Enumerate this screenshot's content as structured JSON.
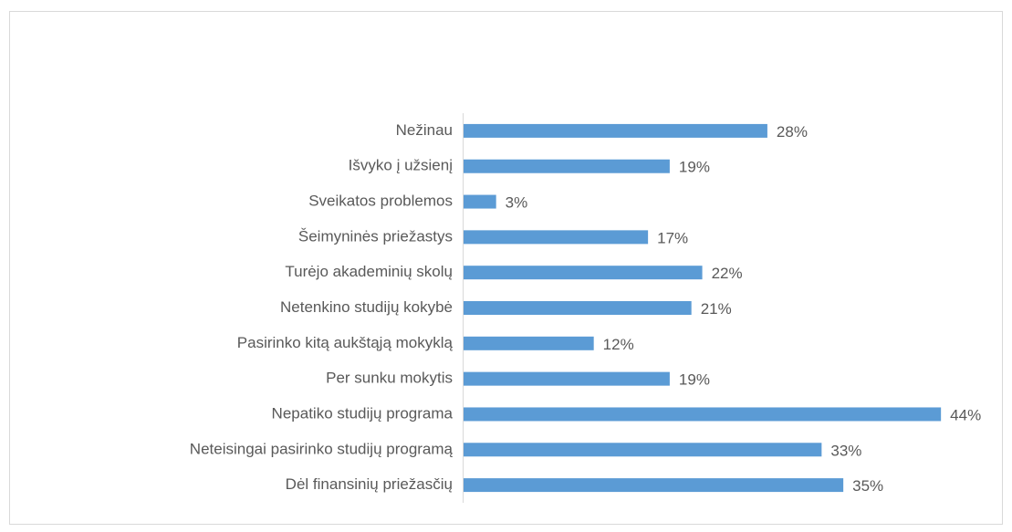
{
  "chart_data": {
    "type": "bar",
    "orientation": "horizontal",
    "color": "#5b9bd5",
    "categories": [
      "Nežinau",
      "Išvyko į užsienį",
      "Sveikatos problemos",
      "Šeimyninės priežastys",
      "Turėjo akademinių skolų",
      "Netenkino studijų kokybė",
      "Pasirinko kitą aukštąją mokyklą",
      "Per sunku mokytis",
      "Nepatiko studijų programa",
      "Neteisingai pasirinko studijų programą",
      "Dėl finansinių priežasčių"
    ],
    "values": [
      28,
      19,
      3,
      17,
      22,
      21,
      12,
      19,
      44,
      33,
      35
    ],
    "value_labels": [
      "28%",
      "19%",
      "3%",
      "17%",
      "22%",
      "21%",
      "12%",
      "19%",
      "44%",
      "33%",
      "35%"
    ]
  }
}
